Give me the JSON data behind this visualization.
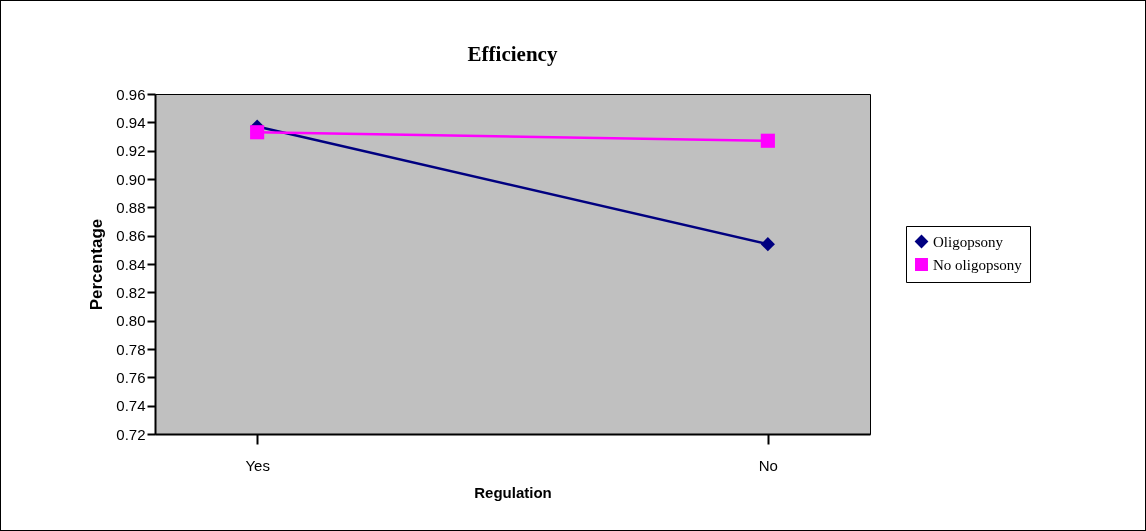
{
  "chart_data": {
    "type": "line",
    "title": "Efficiency",
    "xlabel": "Regulation",
    "ylabel": "Percentage",
    "categories": [
      "Yes",
      "No"
    ],
    "series": [
      {
        "name": "Oligopsony",
        "color": "#000080",
        "marker": "diamond",
        "values": [
          0.937,
          0.854
        ]
      },
      {
        "name": "No oligopsony",
        "color": "#ff00ff",
        "marker": "square",
        "values": [
          0.933,
          0.927
        ]
      }
    ],
    "ylim": [
      0.72,
      0.96
    ],
    "yticks": [
      0.72,
      0.74,
      0.76,
      0.78,
      {
        "value": 0.8,
        "label": "0.80"
      },
      0.82,
      0.84,
      0.86,
      0.88,
      {
        "value": 0.9,
        "label": "0.90"
      },
      0.92,
      0.94,
      0.96
    ],
    "grid": false,
    "legend": "right",
    "line_style": "solid"
  }
}
